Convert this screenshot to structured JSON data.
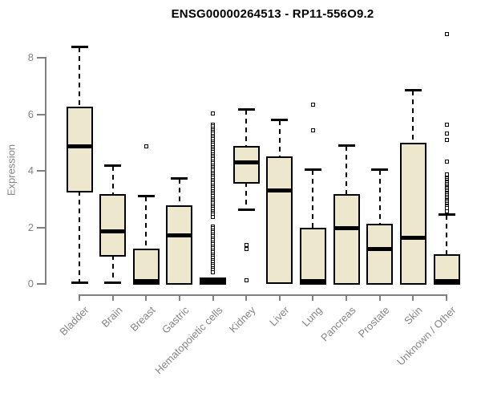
{
  "chart_data": {
    "type": "boxplot",
    "title": "ENSG00000264513 - RP11-556O9.2",
    "ylabel": "Expression",
    "xlabel": "",
    "ylim": [
      0,
      8
    ],
    "yticks": [
      0,
      2,
      4,
      6,
      8
    ],
    "grid": false,
    "legend": "none",
    "categories": [
      "Bladder",
      "Brain",
      "Breast",
      "Gastric",
      "Hematopoietic cells",
      "Kidney",
      "Liver",
      "Lung",
      "Pancreas",
      "Prostate",
      "Skin",
      "Unknown / Other"
    ],
    "boxes": [
      {
        "category": "Bladder",
        "low": 0.02,
        "q1": 3.27,
        "median": 4.83,
        "q3": 6.25,
        "high": 8.35,
        "outliers": []
      },
      {
        "category": "Brain",
        "low": 0.02,
        "q1": 1.0,
        "median": 1.83,
        "q3": 3.15,
        "high": 4.15,
        "outliers": []
      },
      {
        "category": "Breast",
        "low": 0.0,
        "q1": 0.0,
        "median": 0.07,
        "q3": 1.22,
        "high": 3.05,
        "outliers": [
          4.85
        ]
      },
      {
        "category": "Gastric",
        "low": 0.0,
        "q1": 0.0,
        "median": 1.7,
        "q3": 2.75,
        "high": 3.7,
        "outliers": []
      },
      {
        "category": "Hematopoietic cells",
        "low": 0.0,
        "q1": 0.0,
        "median": 0.07,
        "q3": 0.2,
        "high": 0.2,
        "outliers": [
          6.0,
          5.6,
          5.54,
          5.47,
          5.41,
          5.34,
          5.28,
          5.21,
          5.15,
          5.08,
          5.02,
          4.95,
          4.89,
          4.82,
          4.76,
          4.69,
          4.63,
          4.56,
          4.5,
          4.43,
          4.37,
          4.3,
          4.24,
          4.17,
          4.11,
          4.04,
          3.98,
          3.91,
          3.85,
          3.78,
          3.72,
          3.65,
          3.59,
          3.52,
          3.46,
          3.39,
          3.33,
          3.26,
          3.2,
          3.13,
          3.07,
          3.0,
          2.94,
          2.87,
          2.81,
          2.74,
          2.68,
          2.61,
          2.55,
          2.48,
          2.42,
          2.35,
          2.0,
          1.93,
          1.86,
          1.79,
          1.72,
          1.65,
          1.58,
          1.51,
          1.44,
          1.37,
          1.3,
          1.23,
          1.16,
          1.09,
          1.02,
          0.95,
          0.88,
          0.81,
          0.74,
          0.67,
          0.6,
          0.53,
          0.46,
          0.39
        ]
      },
      {
        "category": "Kidney",
        "low": 2.6,
        "q1": 3.58,
        "median": 4.26,
        "q3": 4.86,
        "high": 6.13,
        "outliers": [
          1.35,
          1.2,
          0.1
        ]
      },
      {
        "category": "Liver",
        "low": 0.03,
        "q1": 0.03,
        "median": 3.27,
        "q3": 4.49,
        "high": 5.77,
        "outliers": []
      },
      {
        "category": "Lung",
        "low": 0.0,
        "q1": 0.0,
        "median": 0.08,
        "q3": 1.95,
        "high": 4.0,
        "outliers": [
          6.3,
          5.4
        ]
      },
      {
        "category": "Pancreas",
        "low": 0.0,
        "q1": 0.0,
        "median": 1.95,
        "q3": 3.15,
        "high": 4.85,
        "outliers": []
      },
      {
        "category": "Prostate",
        "low": 0.0,
        "q1": 0.0,
        "median": 1.2,
        "q3": 2.1,
        "high": 4.0,
        "outliers": []
      },
      {
        "category": "Skin",
        "low": 0.0,
        "q1": 0.0,
        "median": 1.6,
        "q3": 4.97,
        "high": 6.8,
        "outliers": []
      },
      {
        "category": "Unknown / Other",
        "low": 0.0,
        "q1": 0.0,
        "median": 0.06,
        "q3": 1.02,
        "high": 2.41,
        "outliers": [
          8.8,
          5.6,
          5.3,
          5.05,
          4.3,
          3.85,
          3.7,
          3.65,
          3.6,
          3.55,
          3.5,
          3.45,
          3.4,
          3.35,
          3.3,
          3.25,
          3.2,
          3.15,
          3.1,
          3.05,
          3.0,
          2.95,
          2.9,
          2.85,
          2.8,
          2.75,
          2.7,
          2.65,
          2.55
        ]
      }
    ],
    "colors": {
      "box_fill": "#ece7cd",
      "box_border": "#000000",
      "median": "#000000",
      "whisker": "#000000",
      "outlier": "#000000",
      "axis": "#808080",
      "tick_label": "#858585",
      "title": "#000000",
      "background": "#ffffff"
    }
  }
}
